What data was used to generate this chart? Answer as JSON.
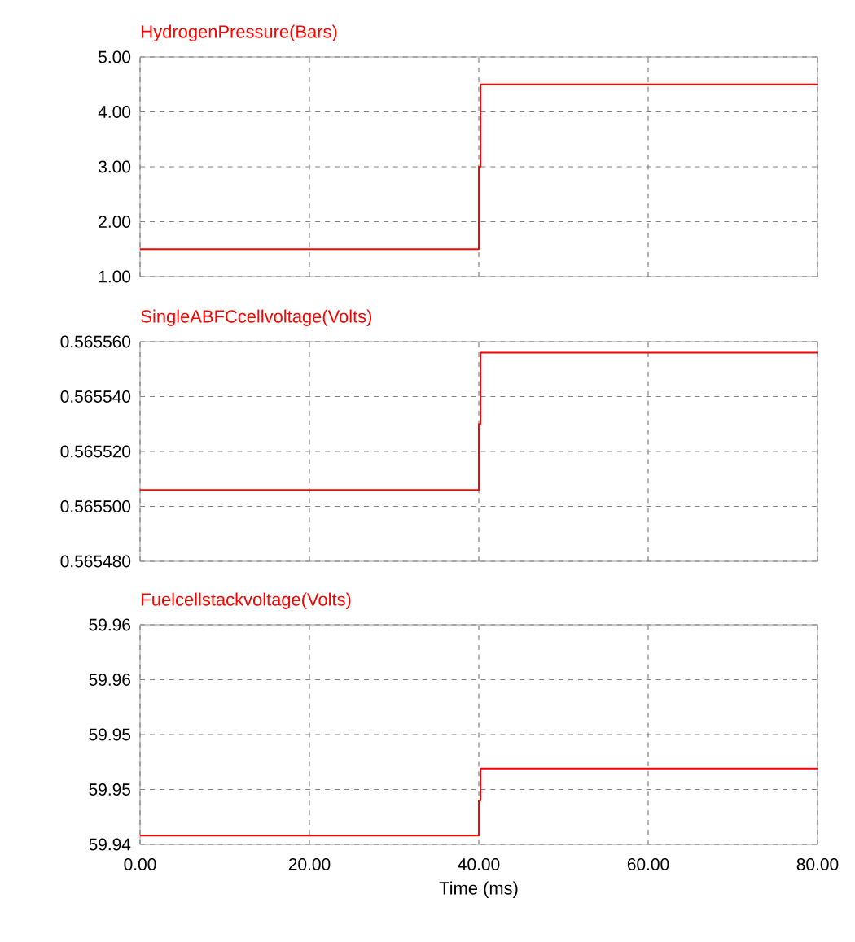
{
  "chart_data": [
    {
      "type": "line",
      "title": "HydrogenPressure(Bars)",
      "x": [
        0,
        40,
        40,
        40.2,
        40.2,
        80
      ],
      "series": [
        {
          "color": "#ff0000",
          "values": [
            1.5,
            1.5,
            3.0,
            3.0,
            4.5,
            4.5
          ]
        }
      ],
      "xlim": [
        0,
        80
      ],
      "xticks": [
        0,
        20,
        40,
        60,
        80
      ],
      "ylim": [
        1,
        5
      ],
      "yticks": [
        {
          "value": 1,
          "label": "1.00"
        },
        {
          "value": 2,
          "label": "2.00"
        },
        {
          "value": 3,
          "label": "3.00"
        },
        {
          "value": 4,
          "label": "4.00"
        },
        {
          "value": 5,
          "label": "5.00"
        }
      ],
      "grid": true,
      "tick_labels": "y"
    },
    {
      "type": "line",
      "title": "SingleABFCcellvoltage(Volts)",
      "x": [
        0,
        40,
        40,
        40.2,
        40.2,
        80
      ],
      "series": [
        {
          "color": "#ff0000",
          "values": [
            0.565506,
            0.565506,
            0.56553,
            0.56553,
            0.565556,
            0.565556
          ]
        }
      ],
      "xlim": [
        0,
        80
      ],
      "xticks": [
        0,
        20,
        40,
        60,
        80
      ],
      "ylim": [
        0.56548,
        0.56556
      ],
      "yticks": [
        {
          "value": 0.56548,
          "label": "0.565480"
        },
        {
          "value": 0.5655,
          "label": "0.565500"
        },
        {
          "value": 0.56552,
          "label": "0.565520"
        },
        {
          "value": 0.56554,
          "label": "0.565540"
        },
        {
          "value": 0.56556,
          "label": "0.565560"
        }
      ],
      "grid": true,
      "tick_labels": "y"
    },
    {
      "type": "line",
      "title": "Fuelcellstackvoltage(Volts)",
      "xlabel": "Time (ms)",
      "x": [
        0,
        40,
        40,
        40.2,
        40.2,
        80
      ],
      "series": [
        {
          "color": "#ff0000",
          "values": [
            59.9408,
            59.9408,
            59.944,
            59.944,
            59.9469,
            59.9469
          ]
        }
      ],
      "xlim": [
        0,
        80
      ],
      "xticks": [
        {
          "value": 0,
          "label": "0.00"
        },
        {
          "value": 20,
          "label": "20.00"
        },
        {
          "value": 40,
          "label": "40.00"
        },
        {
          "value": 60,
          "label": "60.00"
        },
        {
          "value": 80,
          "label": "80.00"
        }
      ],
      "ylim": [
        59.94,
        59.96
      ],
      "yticks": [
        {
          "value": 59.94,
          "label": "59.94"
        },
        {
          "value": 59.945,
          "label": "59.95"
        },
        {
          "value": 59.95,
          "label": "59.95"
        },
        {
          "value": 59.955,
          "label": "59.96"
        },
        {
          "value": 59.96,
          "label": "59.96"
        }
      ],
      "grid": true
    }
  ]
}
